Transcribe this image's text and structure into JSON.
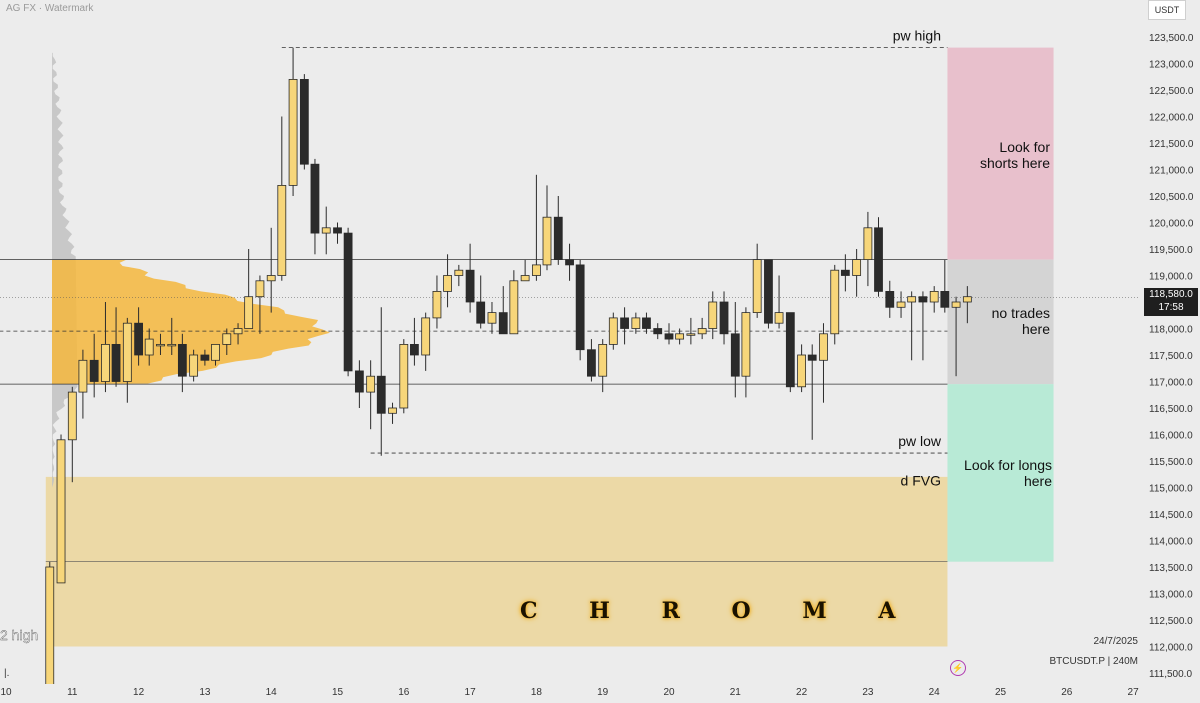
{
  "header": {
    "watermark": "AG FX · Watermark",
    "currency": "USDT"
  },
  "price_tag": {
    "price": "118,580.0",
    "countdown": "17:58"
  },
  "footer": {
    "date": "24/7/2025",
    "symbol": "BTCUSDT.P | 240M",
    "brand": "C H R O M A",
    "corner_tick": "|."
  },
  "colors": {
    "up": "#f7d67a",
    "down": "#2b2b2b",
    "profile_gold": "#f4b73d",
    "profile_grey": "#c2c2c2",
    "fvg": "#ecd9a6",
    "short_zone": "#e8c0cc",
    "neutral_zone": "#d4d4d4",
    "long_zone": "#b8ead6"
  },
  "chart_data": {
    "type": "candlestick",
    "symbol": "BTCUSDT.P",
    "timeframe": "240M",
    "ylim": [
      111200,
      123900
    ],
    "y_ticks": [
      "123,500.0",
      "123,000.0",
      "122,500.0",
      "122,000.0",
      "121,500.0",
      "121,000.0",
      "120,500.0",
      "120,000.0",
      "119,500.0",
      "119,000.0",
      "118,500.0",
      "118,000.0",
      "117,500.0",
      "117,000.0",
      "116,500.0",
      "116,000.0",
      "115,500.0",
      "115,000.0",
      "114,500.0",
      "114,000.0",
      "113,500.0",
      "113,000.0",
      "112,500.0",
      "112,000.0",
      "111,500.0"
    ],
    "x_ticks": [
      "10",
      "11",
      "12",
      "13",
      "14",
      "15",
      "16",
      "17",
      "18",
      "19",
      "20",
      "21",
      "22",
      "23",
      "24",
      "25",
      "26",
      "27"
    ],
    "x_range": [
      10,
      27
    ],
    "candles": [
      {
        "x": 10.66,
        "o": 111200,
        "h": 113600,
        "l": 111200,
        "c": 113500
      },
      {
        "x": 10.83,
        "o": 113200,
        "h": 116000,
        "l": 113200,
        "c": 115900
      },
      {
        "x": 11.0,
        "o": 115900,
        "h": 116900,
        "l": 115100,
        "c": 116800
      },
      {
        "x": 11.16,
        "o": 116800,
        "h": 117600,
        "l": 116300,
        "c": 117400
      },
      {
        "x": 11.33,
        "o": 117400,
        "h": 117900,
        "l": 116700,
        "c": 117000
      },
      {
        "x": 11.5,
        "o": 117000,
        "h": 118500,
        "l": 116800,
        "c": 117700
      },
      {
        "x": 11.66,
        "o": 117700,
        "h": 118400,
        "l": 116900,
        "c": 117000
      },
      {
        "x": 11.83,
        "o": 117000,
        "h": 118200,
        "l": 116600,
        "c": 118100
      },
      {
        "x": 12.0,
        "o": 118100,
        "h": 118400,
        "l": 117300,
        "c": 117500
      },
      {
        "x": 12.16,
        "o": 117500,
        "h": 118000,
        "l": 117300,
        "c": 117800
      },
      {
        "x": 12.33,
        "o": 117700,
        "h": 117900,
        "l": 117500,
        "c": 117700
      },
      {
        "x": 12.5,
        "o": 117700,
        "h": 118200,
        "l": 117500,
        "c": 117700
      },
      {
        "x": 12.66,
        "o": 117700,
        "h": 117900,
        "l": 116800,
        "c": 117100
      },
      {
        "x": 12.83,
        "o": 117100,
        "h": 117600,
        "l": 117000,
        "c": 117500
      },
      {
        "x": 13.0,
        "o": 117500,
        "h": 117600,
        "l": 117300,
        "c": 117400
      },
      {
        "x": 13.16,
        "o": 117400,
        "h": 117700,
        "l": 117300,
        "c": 117700
      },
      {
        "x": 13.33,
        "o": 117700,
        "h": 118000,
        "l": 117500,
        "c": 117900
      },
      {
        "x": 13.5,
        "o": 117900,
        "h": 118100,
        "l": 117700,
        "c": 118000
      },
      {
        "x": 13.66,
        "o": 118000,
        "h": 119500,
        "l": 118000,
        "c": 118600
      },
      {
        "x": 13.83,
        "o": 118600,
        "h": 119000,
        "l": 117900,
        "c": 118900
      },
      {
        "x": 14.0,
        "o": 118900,
        "h": 119900,
        "l": 118300,
        "c": 119000
      },
      {
        "x": 14.16,
        "o": 119000,
        "h": 122000,
        "l": 118900,
        "c": 120700
      },
      {
        "x": 14.33,
        "o": 120700,
        "h": 123300,
        "l": 120500,
        "c": 122700
      },
      {
        "x": 14.5,
        "o": 122700,
        "h": 122800,
        "l": 121000,
        "c": 121100
      },
      {
        "x": 14.66,
        "o": 121100,
        "h": 121200,
        "l": 119400,
        "c": 119800
      },
      {
        "x": 14.83,
        "o": 119800,
        "h": 120300,
        "l": 119400,
        "c": 119900
      },
      {
        "x": 15.0,
        "o": 119900,
        "h": 120000,
        "l": 119600,
        "c": 119800
      },
      {
        "x": 15.16,
        "o": 119800,
        "h": 119900,
        "l": 117100,
        "c": 117200
      },
      {
        "x": 15.33,
        "o": 117200,
        "h": 117400,
        "l": 116500,
        "c": 116800
      },
      {
        "x": 15.5,
        "o": 116800,
        "h": 117400,
        "l": 116100,
        "c": 117100
      },
      {
        "x": 15.66,
        "o": 117100,
        "h": 118400,
        "l": 115600,
        "c": 116400
      },
      {
        "x": 15.83,
        "o": 116400,
        "h": 116600,
        "l": 116200,
        "c": 116500
      },
      {
        "x": 16.0,
        "o": 116500,
        "h": 117800,
        "l": 116400,
        "c": 117700
      },
      {
        "x": 16.16,
        "o": 117700,
        "h": 118200,
        "l": 117300,
        "c": 117500
      },
      {
        "x": 16.33,
        "o": 117500,
        "h": 118300,
        "l": 117200,
        "c": 118200
      },
      {
        "x": 16.5,
        "o": 118200,
        "h": 119000,
        "l": 118000,
        "c": 118700
      },
      {
        "x": 16.66,
        "o": 118700,
        "h": 119400,
        "l": 118400,
        "c": 119000
      },
      {
        "x": 16.83,
        "o": 119000,
        "h": 119200,
        "l": 118800,
        "c": 119100
      },
      {
        "x": 17.0,
        "o": 119100,
        "h": 119600,
        "l": 118300,
        "c": 118500
      },
      {
        "x": 17.16,
        "o": 118500,
        "h": 119000,
        "l": 118000,
        "c": 118100
      },
      {
        "x": 17.33,
        "o": 118100,
        "h": 118500,
        "l": 117900,
        "c": 118300
      },
      {
        "x": 17.5,
        "o": 118300,
        "h": 118800,
        "l": 117900,
        "c": 117900
      },
      {
        "x": 17.66,
        "o": 117900,
        "h": 119100,
        "l": 117900,
        "c": 118900
      },
      {
        "x": 17.83,
        "o": 118900,
        "h": 119300,
        "l": 118900,
        "c": 119000
      },
      {
        "x": 18.0,
        "o": 119000,
        "h": 120900,
        "l": 118900,
        "c": 119200
      },
      {
        "x": 18.16,
        "o": 119200,
        "h": 120700,
        "l": 119100,
        "c": 120100
      },
      {
        "x": 18.33,
        "o": 120100,
        "h": 120500,
        "l": 119200,
        "c": 119300
      },
      {
        "x": 18.5,
        "o": 119300,
        "h": 119600,
        "l": 118900,
        "c": 119200
      },
      {
        "x": 18.66,
        "o": 119200,
        "h": 119300,
        "l": 117400,
        "c": 117600
      },
      {
        "x": 18.83,
        "o": 117600,
        "h": 117800,
        "l": 117000,
        "c": 117100
      },
      {
        "x": 19.0,
        "o": 117100,
        "h": 117800,
        "l": 116800,
        "c": 117700
      },
      {
        "x": 19.16,
        "o": 117700,
        "h": 118300,
        "l": 117600,
        "c": 118200
      },
      {
        "x": 19.33,
        "o": 118200,
        "h": 118400,
        "l": 117700,
        "c": 118000
      },
      {
        "x": 19.5,
        "o": 118000,
        "h": 118300,
        "l": 117900,
        "c": 118200
      },
      {
        "x": 19.66,
        "o": 118200,
        "h": 118300,
        "l": 117900,
        "c": 118000
      },
      {
        "x": 19.83,
        "o": 118000,
        "h": 118100,
        "l": 117800,
        "c": 117900
      },
      {
        "x": 20.0,
        "o": 117900,
        "h": 118100,
        "l": 117700,
        "c": 117800
      },
      {
        "x": 20.16,
        "o": 117800,
        "h": 118000,
        "l": 117700,
        "c": 117900
      },
      {
        "x": 20.33,
        "o": 117900,
        "h": 118200,
        "l": 117700,
        "c": 117900
      },
      {
        "x": 20.5,
        "o": 117900,
        "h": 118200,
        "l": 117800,
        "c": 118000
      },
      {
        "x": 20.66,
        "o": 118000,
        "h": 118700,
        "l": 117800,
        "c": 118500
      },
      {
        "x": 20.83,
        "o": 118500,
        "h": 118700,
        "l": 117700,
        "c": 117900
      },
      {
        "x": 21.0,
        "o": 117900,
        "h": 118500,
        "l": 116700,
        "c": 117100
      },
      {
        "x": 21.16,
        "o": 117100,
        "h": 118400,
        "l": 116700,
        "c": 118300
      },
      {
        "x": 21.33,
        "o": 118300,
        "h": 119600,
        "l": 118200,
        "c": 119300
      },
      {
        "x": 21.5,
        "o": 119300,
        "h": 119300,
        "l": 118000,
        "c": 118100
      },
      {
        "x": 21.66,
        "o": 118100,
        "h": 119000,
        "l": 118000,
        "c": 118300
      },
      {
        "x": 21.83,
        "o": 118300,
        "h": 118300,
        "l": 116800,
        "c": 116900
      },
      {
        "x": 22.0,
        "o": 116900,
        "h": 117700,
        "l": 116800,
        "c": 117500
      },
      {
        "x": 22.16,
        "o": 117500,
        "h": 117700,
        "l": 115900,
        "c": 117400
      },
      {
        "x": 22.33,
        "o": 117400,
        "h": 118100,
        "l": 116600,
        "c": 117900
      },
      {
        "x": 22.5,
        "o": 117900,
        "h": 119200,
        "l": 117700,
        "c": 119100
      },
      {
        "x": 22.66,
        "o": 119100,
        "h": 119400,
        "l": 118700,
        "c": 119000
      },
      {
        "x": 22.83,
        "o": 119000,
        "h": 119500,
        "l": 118600,
        "c": 119300
      },
      {
        "x": 23.0,
        "o": 119300,
        "h": 120200,
        "l": 118800,
        "c": 119900
      },
      {
        "x": 23.16,
        "o": 119900,
        "h": 120100,
        "l": 118600,
        "c": 118700
      },
      {
        "x": 23.33,
        "o": 118700,
        "h": 118900,
        "l": 118200,
        "c": 118400
      },
      {
        "x": 23.5,
        "o": 118400,
        "h": 118700,
        "l": 118200,
        "c": 118500
      },
      {
        "x": 23.66,
        "o": 118500,
        "h": 118700,
        "l": 117400,
        "c": 118600
      },
      {
        "x": 23.83,
        "o": 118600,
        "h": 118700,
        "l": 117400,
        "c": 118500
      },
      {
        "x": 24.0,
        "o": 118500,
        "h": 118800,
        "l": 118300,
        "c": 118700
      },
      {
        "x": 24.16,
        "o": 118700,
        "h": 119300,
        "l": 118300,
        "c": 118400
      },
      {
        "x": 24.33,
        "o": 118400,
        "h": 118600,
        "l": 117100,
        "c": 118500
      },
      {
        "x": 24.5,
        "o": 118500,
        "h": 118800,
        "l": 118100,
        "c": 118600
      }
    ],
    "levels": [
      {
        "label": "pw high",
        "price": 123300,
        "style": "dashed",
        "x_start": 14.16
      },
      {
        "label": "pw low",
        "price": 115650,
        "style": "dashed",
        "x_start": 15.5
      },
      {
        "label": "",
        "price": 119300,
        "style": "solid",
        "x_start": 9.9
      },
      {
        "label": "",
        "price": 116950,
        "style": "solid",
        "x_start": 9.9
      },
      {
        "label": "",
        "price": 117950,
        "style": "dashed",
        "x_start": 9.9
      }
    ],
    "zones": [
      {
        "label": "d FVG",
        "low": 112000,
        "high": 115200,
        "x_start": 10.6,
        "x_end": 24.2
      },
      {
        "label": "Look for shorts here",
        "low": 119300,
        "high": 123300,
        "x_start": 24.2,
        "x_end": 25.8
      },
      {
        "label": "no trades here",
        "low": 116950,
        "high": 119300,
        "x_start": 24.2,
        "x_end": 25.8
      },
      {
        "label": "Look for longs here",
        "low": 113600,
        "high": 116950,
        "x_start": 24.2,
        "x_end": 25.8
      }
    ],
    "left_label": "2 high",
    "current_price": 118580.0
  }
}
